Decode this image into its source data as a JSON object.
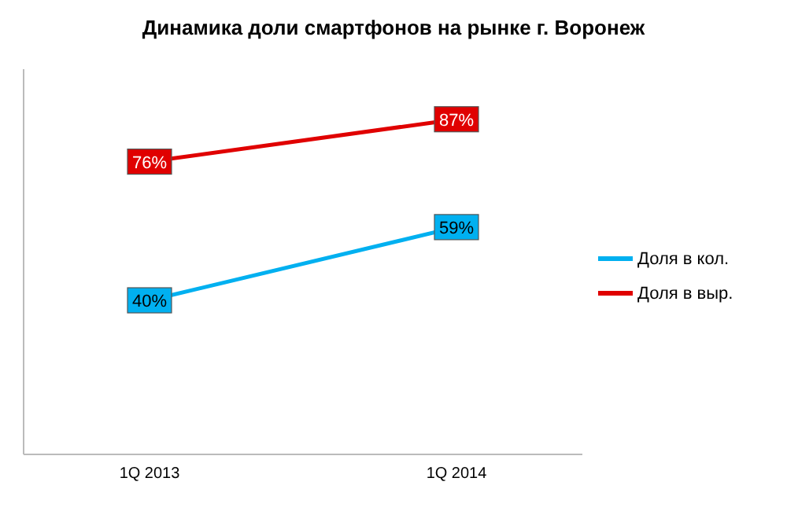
{
  "chart_data": {
    "type": "line",
    "title": "Динамика доли смартфонов на рынке г. Воронеж",
    "categories": [
      "1Q 2013",
      "1Q 2014"
    ],
    "series": [
      {
        "name": "Доля в кол.",
        "color": "#00b0f0",
        "values": [
          40,
          59
        ],
        "value_labels": [
          "40%",
          "59%"
        ]
      },
      {
        "name": "Доля в выр.",
        "color": "#e00000",
        "values": [
          76,
          87
        ],
        "value_labels": [
          "76%",
          "87%"
        ]
      }
    ],
    "ylim": [
      0,
      100
    ],
    "tick_labels": "x",
    "grid": false,
    "legend": "right",
    "marker": "square",
    "line_style": "solid"
  }
}
